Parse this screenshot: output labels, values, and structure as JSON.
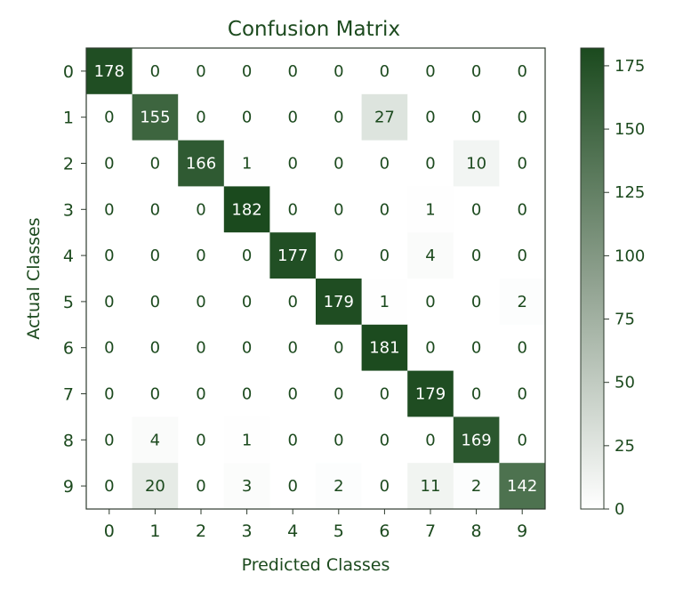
{
  "chart_data": {
    "type": "heatmap",
    "title": "Confusion Matrix",
    "xlabel": "Predicted Classes",
    "ylabel": "Actual Classes",
    "x_categories": [
      "0",
      "1",
      "2",
      "3",
      "4",
      "5",
      "6",
      "7",
      "8",
      "9"
    ],
    "y_categories": [
      "0",
      "1",
      "2",
      "3",
      "4",
      "5",
      "6",
      "7",
      "8",
      "9"
    ],
    "values": [
      [
        178,
        0,
        0,
        0,
        0,
        0,
        0,
        0,
        0,
        0
      ],
      [
        0,
        155,
        0,
        0,
        0,
        0,
        27,
        0,
        0,
        0
      ],
      [
        0,
        0,
        166,
        1,
        0,
        0,
        0,
        0,
        10,
        0
      ],
      [
        0,
        0,
        0,
        182,
        0,
        0,
        0,
        1,
        0,
        0
      ],
      [
        0,
        0,
        0,
        0,
        177,
        0,
        0,
        4,
        0,
        0
      ],
      [
        0,
        0,
        0,
        0,
        0,
        179,
        1,
        0,
        0,
        2
      ],
      [
        0,
        0,
        0,
        0,
        0,
        0,
        181,
        0,
        0,
        0
      ],
      [
        0,
        0,
        0,
        0,
        0,
        0,
        0,
        179,
        0,
        0
      ],
      [
        0,
        4,
        0,
        1,
        0,
        0,
        0,
        0,
        169,
        0
      ],
      [
        0,
        20,
        0,
        3,
        0,
        2,
        0,
        11,
        2,
        142
      ]
    ],
    "colorbar": {
      "range": [
        0,
        182
      ],
      "ticks": [
        "0",
        "25",
        "50",
        "75",
        "100",
        "125",
        "150",
        "175"
      ],
      "color_low": "#ffffff",
      "color_high": "#1b4a1e"
    },
    "text_color_dark": "#1c4a1e",
    "text_color_light": "#ffffff",
    "grid": false
  }
}
